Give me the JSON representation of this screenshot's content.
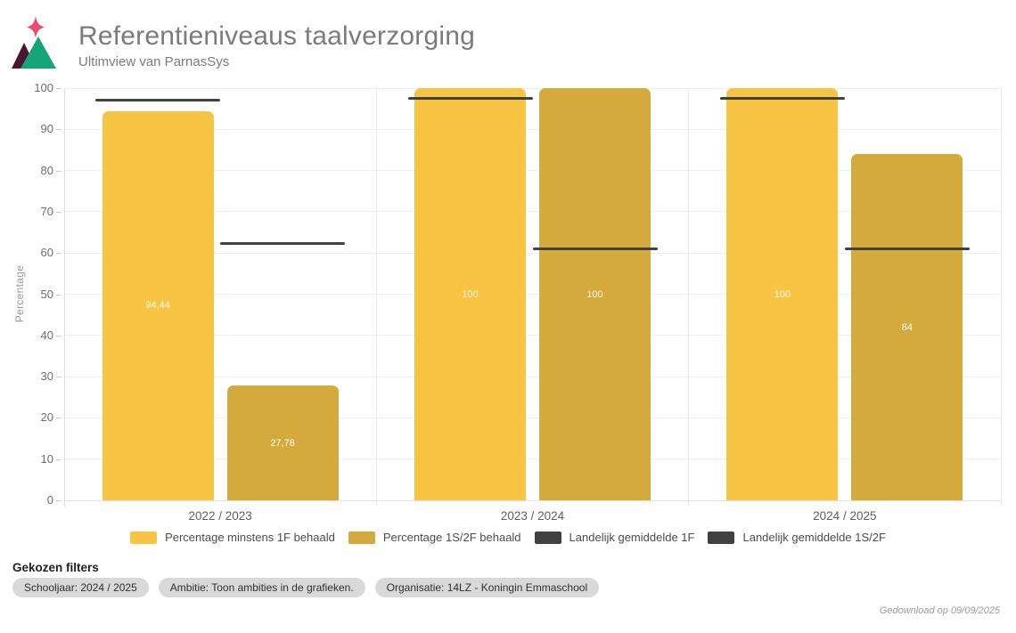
{
  "header": {
    "title": "Referentieniveaus taalverzorging",
    "subtitle": "Ultimview van ParnasSys",
    "logo_colors": {
      "star": "#E94D6F",
      "mountain_dark": "#4A1633",
      "mountain_green": "#16A57B"
    }
  },
  "chart_data": {
    "type": "bar",
    "title": "Referentieniveaus taalverzorging",
    "xlabel": "",
    "ylabel": "Percentage",
    "ylim": [
      0,
      100
    ],
    "ytick_step": 10,
    "grid": true,
    "legend_position": "bottom",
    "categories": [
      "2022 / 2023",
      "2023 / 2024",
      "2024 / 2025"
    ],
    "series": [
      {
        "name": "Percentage minstens 1F behaald",
        "kind": "bar",
        "column": 0,
        "color": "#F7C443",
        "values": [
          94.44,
          100,
          100
        ],
        "value_labels": [
          "94,44",
          "100",
          "100"
        ]
      },
      {
        "name": "Percentage 1S/2F behaald",
        "kind": "bar",
        "column": 1,
        "color": "#D4AA3C",
        "values": [
          27.78,
          100,
          84
        ],
        "value_labels": [
          "27,78",
          "100",
          "84"
        ]
      },
      {
        "name": "Landelijk gemiddelde 1F",
        "kind": "marker-line",
        "column": 0,
        "color": "#414141",
        "values": [
          97,
          97.5,
          97.5
        ]
      },
      {
        "name": "Landelijk gemiddelde 1S/2F",
        "kind": "marker-line",
        "column": 1,
        "color": "#414141",
        "values": [
          62.3,
          61,
          61
        ]
      }
    ]
  },
  "filters": {
    "heading": "Gekozen filters",
    "chips": [
      "Schooljaar: 2024 / 2025",
      "Ambitie: Toon ambities in de grafieken.",
      "Organisatie: 14LZ - Koningin Emmaschool"
    ]
  },
  "footer": {
    "downloaded_label": "Gedownload op 09/09/2025"
  }
}
